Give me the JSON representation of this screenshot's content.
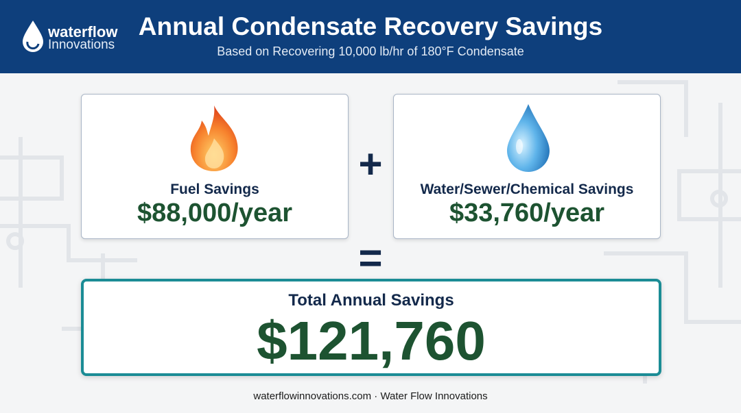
{
  "header": {
    "logo": {
      "name": "waterflow",
      "tagline": "Innovations"
    },
    "title": "Annual Condensate Recovery Savings",
    "subtitle": "Based on Recovering 10,000 lb/hr of 180°F Condensate"
  },
  "cards": [
    {
      "label": "Fuel Savings",
      "value": "$88,000/year"
    },
    {
      "label": "Water/Sewer/Chemical Savings",
      "value": "$33,760/year"
    }
  ],
  "operators": {
    "plus": "+",
    "equals": "="
  },
  "total": {
    "label": "Total Annual Savings",
    "value": "$121,760"
  },
  "footer": "waterflowinnovations.com · Water Flow Innovations"
}
